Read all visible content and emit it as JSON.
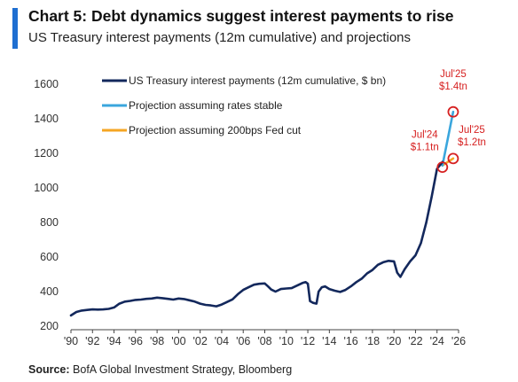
{
  "header": {
    "title": "Chart 5: Debt dynamics suggest interest payments to rise",
    "subtitle": "US Treasury interest payments (12m cumulative) and projections"
  },
  "source": {
    "label": "Source:",
    "text": "BofA Global Investment Strategy, Bloomberg"
  },
  "colors": {
    "accent": "#1f6fd1",
    "history": "#13285c",
    "stable": "#3aa6dd",
    "cut": "#f5a623",
    "annotation": "#d62020"
  },
  "chart_data": {
    "type": "line",
    "title": "Chart 5: Debt dynamics suggest interest payments to rise",
    "subtitle": "US Treasury interest payments (12m cumulative) and projections",
    "xlim": [
      1990,
      2026
    ],
    "ylim": [
      200,
      1600
    ],
    "x_ticks": [
      "'90",
      "'92",
      "'94",
      "'96",
      "'98",
      "'00",
      "'02",
      "'04",
      "'06",
      "'08",
      "'10",
      "'12",
      "'14",
      "'16",
      "'18",
      "'20",
      "'22",
      "'24",
      "'26"
    ],
    "y_ticks": [
      200,
      400,
      600,
      800,
      1000,
      1200,
      1400,
      1600
    ],
    "legend": "top-left",
    "grid": false,
    "series": [
      {
        "name": "US Treasury interest payments (12m cumulative, $ bn)",
        "color": "#13285c",
        "x": [
          1990.0,
          1990.5,
          1991.0,
          1991.5,
          1992.0,
          1992.5,
          1993.0,
          1993.5,
          1994.0,
          1994.5,
          1995.0,
          1995.5,
          1996.0,
          1996.5,
          1997.0,
          1997.5,
          1998.0,
          1998.5,
          1999.0,
          1999.5,
          2000.0,
          2000.5,
          2001.0,
          2001.5,
          2002.0,
          2002.5,
          2003.0,
          2003.5,
          2004.0,
          2004.5,
          2005.0,
          2005.5,
          2006.0,
          2006.5,
          2007.0,
          2007.5,
          2008.0,
          2008.3,
          2008.6,
          2009.0,
          2009.5,
          2010.0,
          2010.5,
          2011.0,
          2011.5,
          2011.8,
          2012.0,
          2012.2,
          2012.5,
          2012.8,
          2013.0,
          2013.3,
          2013.6,
          2014.0,
          2014.5,
          2015.0,
          2015.5,
          2016.0,
          2016.5,
          2017.0,
          2017.5,
          2018.0,
          2018.5,
          2019.0,
          2019.5,
          2020.0,
          2020.3,
          2020.6,
          2021.0,
          2021.5,
          2022.0,
          2022.5,
          2023.0,
          2023.5,
          2024.0,
          2024.5
        ],
        "values": [
          262,
          282,
          290,
          294,
          297,
          296,
          297,
          300,
          308,
          330,
          342,
          346,
          352,
          354,
          358,
          360,
          365,
          362,
          358,
          354,
          360,
          357,
          350,
          342,
          330,
          323,
          320,
          315,
          325,
          340,
          355,
          385,
          410,
          425,
          440,
          445,
          447,
          430,
          412,
          400,
          415,
          418,
          420,
          435,
          450,
          455,
          445,
          345,
          335,
          330,
          400,
          425,
          430,
          415,
          405,
          398,
          410,
          430,
          455,
          475,
          505,
          525,
          555,
          570,
          578,
          575,
          510,
          485,
          530,
          575,
          610,
          680,
          800,
          950,
          1110,
          1150
        ]
      },
      {
        "name": "Projection assuming rates stable",
        "color": "#3aa6dd",
        "x": [
          2024.5,
          2025.5
        ],
        "values": [
          1130,
          1440
        ]
      },
      {
        "name": "Projection assuming 200bps Fed cut",
        "color": "#f5a623",
        "x": [
          2024.5,
          2025.5
        ],
        "values": [
          1130,
          1170
        ]
      }
    ],
    "annotations": [
      {
        "label": "Jul'24",
        "value": "$1.1tn",
        "x": 2024.5,
        "y": 1120
      },
      {
        "label": "Jul'25",
        "value": "$1.4tn",
        "x": 2025.5,
        "y": 1440
      },
      {
        "label": "Jul'25",
        "value": "$1.2tn",
        "x": 2025.5,
        "y": 1170
      }
    ]
  }
}
